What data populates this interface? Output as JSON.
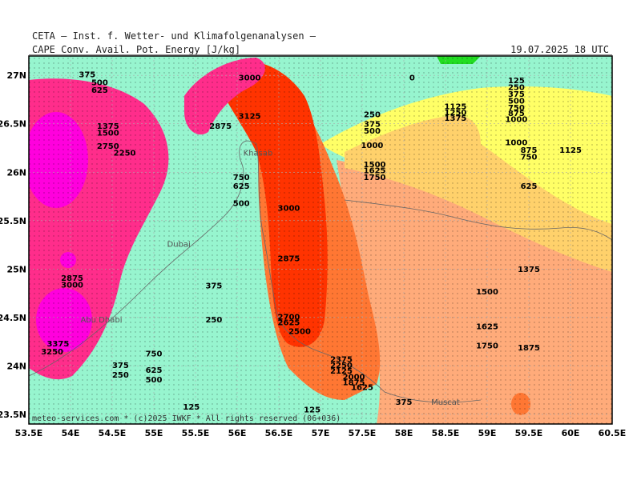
{
  "header": {
    "title": "CETA – Inst. f. Wetter- und Klimafolgenanalysen –",
    "variable": "CAPE  Conv. Avail. Pot. Energy [J/kg]",
    "valid_time": "19.07.2025  18 UTC"
  },
  "credit": "meteo-services.com * (c)2025 IWKF * All rights reserved (06+036)",
  "map": {
    "lon_range": [
      53.5,
      60.5
    ],
    "lat_range": [
      23.4,
      27.2
    ],
    "lon_ticks": [
      "53.5E",
      "54E",
      "54.5E",
      "55E",
      "55.5E",
      "56E",
      "56.5E",
      "57E",
      "57.5E",
      "58E",
      "58.5E",
      "59E",
      "59.5E",
      "60E",
      "60.5E"
    ],
    "lat_ticks": [
      "23.5N",
      "24N",
      "24.5N",
      "25N",
      "25.5N",
      "26N",
      "26.5N",
      "27N"
    ],
    "colors": {
      "cape_0_500": "#97f5cf",
      "cape_500_1000": "#ffff66",
      "cape_1000_1500": "#ffd16b",
      "cape_1500_2000": "#ffab7a",
      "cape_2000_2500": "#ff7733",
      "cape_2500_3000": "#ff3300",
      "cape_3000_plus": "#ff2d8b",
      "cape_high": "#ff00dd",
      "cape_zero": "#22dd22"
    },
    "places": [
      {
        "name": "Khasab",
        "lon": 56.25,
        "lat": 26.17
      },
      {
        "name": "Dubai",
        "lon": 55.3,
        "lat": 25.23
      },
      {
        "name": "Abu Dhabi",
        "lon": 54.37,
        "lat": 24.45
      },
      {
        "name": "Muscat",
        "lon": 58.5,
        "lat": 23.6
      }
    ],
    "contour_labels": [
      {
        "text": "375",
        "lon": 54.2,
        "lat": 26.98
      },
      {
        "text": "500",
        "lon": 54.35,
        "lat": 26.9
      },
      {
        "text": "625",
        "lon": 54.35,
        "lat": 26.82
      },
      {
        "text": "1375",
        "lon": 54.45,
        "lat": 26.45
      },
      {
        "text": "1500",
        "lon": 54.45,
        "lat": 26.38
      },
      {
        "text": "2750",
        "lon": 54.45,
        "lat": 26.24
      },
      {
        "text": "2250",
        "lon": 54.65,
        "lat": 26.17
      },
      {
        "text": "3000",
        "lon": 56.15,
        "lat": 26.95
      },
      {
        "text": "3125",
        "lon": 56.15,
        "lat": 26.55
      },
      {
        "text": "2875",
        "lon": 55.8,
        "lat": 26.45
      },
      {
        "text": "750",
        "lon": 56.05,
        "lat": 25.92
      },
      {
        "text": "625",
        "lon": 56.05,
        "lat": 25.83
      },
      {
        "text": "500",
        "lon": 56.05,
        "lat": 25.65
      },
      {
        "text": "3000",
        "lon": 56.62,
        "lat": 25.6
      },
      {
        "text": "2875",
        "lon": 56.62,
        "lat": 25.08
      },
      {
        "text": "375",
        "lon": 55.72,
        "lat": 24.8
      },
      {
        "text": "250",
        "lon": 55.72,
        "lat": 24.45
      },
      {
        "text": "2700",
        "lon": 56.62,
        "lat": 24.48
      },
      {
        "text": "2625",
        "lon": 56.62,
        "lat": 24.42
      },
      {
        "text": "2500",
        "lon": 56.75,
        "lat": 24.33
      },
      {
        "text": "2875",
        "lon": 54.02,
        "lat": 24.88
      },
      {
        "text": "3000",
        "lon": 54.02,
        "lat": 24.81
      },
      {
        "text": "3375",
        "lon": 53.85,
        "lat": 24.2
      },
      {
        "text": "3250",
        "lon": 53.78,
        "lat": 24.12
      },
      {
        "text": "750",
        "lon": 55.0,
        "lat": 24.1
      },
      {
        "text": "375",
        "lon": 54.6,
        "lat": 23.98
      },
      {
        "text": "625",
        "lon": 55.0,
        "lat": 23.93
      },
      {
        "text": "250",
        "lon": 54.6,
        "lat": 23.88
      },
      {
        "text": "500",
        "lon": 55.0,
        "lat": 23.83
      },
      {
        "text": "125",
        "lon": 55.45,
        "lat": 23.55
      },
      {
        "text": "125",
        "lon": 56.9,
        "lat": 23.52
      },
      {
        "text": "2375",
        "lon": 57.25,
        "lat": 24.04
      },
      {
        "text": "2250",
        "lon": 57.25,
        "lat": 23.98
      },
      {
        "text": "2125",
        "lon": 57.25,
        "lat": 23.92
      },
      {
        "text": "2000",
        "lon": 57.4,
        "lat": 23.86
      },
      {
        "text": "1875",
        "lon": 57.4,
        "lat": 23.8
      },
      {
        "text": "1625",
        "lon": 57.5,
        "lat": 23.75
      },
      {
        "text": "375",
        "lon": 58.0,
        "lat": 23.6
      },
      {
        "text": "0",
        "lon": 58.1,
        "lat": 26.95
      },
      {
        "text": "250",
        "lon": 57.62,
        "lat": 26.57
      },
      {
        "text": "375",
        "lon": 57.62,
        "lat": 26.47
      },
      {
        "text": "500",
        "lon": 57.62,
        "lat": 26.4
      },
      {
        "text": "1000",
        "lon": 57.62,
        "lat": 26.25
      },
      {
        "text": "1500",
        "lon": 57.65,
        "lat": 26.05
      },
      {
        "text": "1625",
        "lon": 57.65,
        "lat": 25.99
      },
      {
        "text": "1750",
        "lon": 57.65,
        "lat": 25.92
      },
      {
        "text": "1125",
        "lon": 58.62,
        "lat": 26.65
      },
      {
        "text": "1250",
        "lon": 58.62,
        "lat": 26.59
      },
      {
        "text": "1375",
        "lon": 58.62,
        "lat": 26.53
      },
      {
        "text": "125",
        "lon": 59.35,
        "lat": 26.92
      },
      {
        "text": "250",
        "lon": 59.35,
        "lat": 26.85
      },
      {
        "text": "375",
        "lon": 59.35,
        "lat": 26.78
      },
      {
        "text": "500",
        "lon": 59.35,
        "lat": 26.71
      },
      {
        "text": "750",
        "lon": 59.35,
        "lat": 26.64
      },
      {
        "text": "875",
        "lon": 59.35,
        "lat": 26.58
      },
      {
        "text": "1000",
        "lon": 59.35,
        "lat": 26.52
      },
      {
        "text": "1000",
        "lon": 59.35,
        "lat": 26.28
      },
      {
        "text": "875",
        "lon": 59.5,
        "lat": 26.2
      },
      {
        "text": "750",
        "lon": 59.5,
        "lat": 26.13
      },
      {
        "text": "1125",
        "lon": 60.0,
        "lat": 26.2
      },
      {
        "text": "625",
        "lon": 59.5,
        "lat": 25.83
      },
      {
        "text": "1375",
        "lon": 59.5,
        "lat": 24.97
      },
      {
        "text": "1500",
        "lon": 59.0,
        "lat": 24.74
      },
      {
        "text": "1625",
        "lon": 59.0,
        "lat": 24.38
      },
      {
        "text": "1750",
        "lon": 59.0,
        "lat": 24.18
      },
      {
        "text": "1875",
        "lon": 59.5,
        "lat": 24.16
      }
    ]
  }
}
